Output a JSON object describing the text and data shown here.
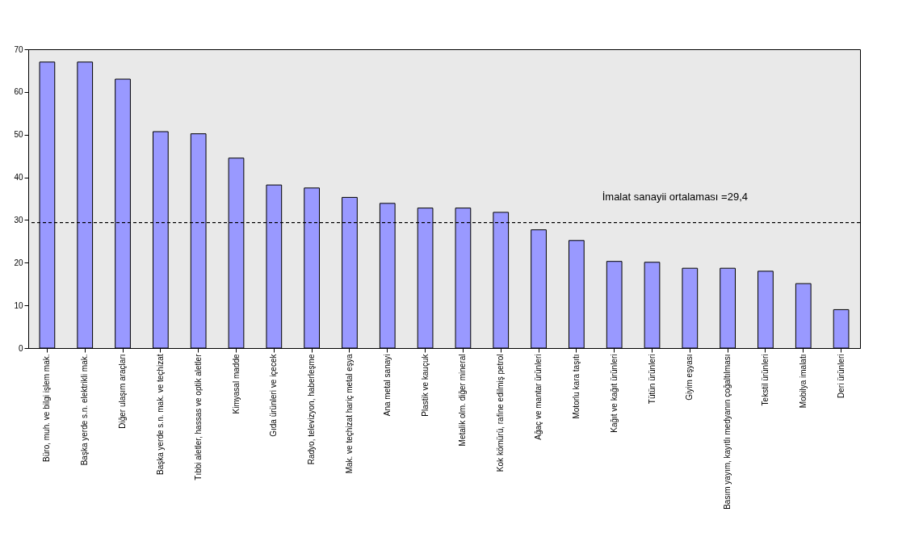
{
  "chart_data": {
    "type": "bar",
    "categories": [
      "Büro, muh. ve bilgi işlem mak.",
      "Başka yerde s.n. elektrikli mak.",
      "Diğer ulaşım araçları",
      "Başka yerde s.n. mak. ve teçhizat",
      "Tıbbi aletler, hassas ve optik aletler",
      "Kimyasal madde",
      "Gıda ürünleri ve içecek",
      "Radyo, televizyon, haberleşme",
      "Mak. ve teçhizat hariç metal eşya",
      "Ana metal sanayi",
      "Plastik ve kauçuk",
      "Metalik olm. diğer mineral",
      "Kok kömürü, rafine edilmiş petrol",
      "Ağaç ve mantar ürünleri",
      "Motorlu kara taşıtı",
      "Kağıt ve kağıt ürünleri",
      "Tütün ürünleri",
      "Giyim eşyası",
      "Basım yayım, kayıtlı medyanın çoğaltılması",
      "Tekstil ürünleri",
      "Mobilya imalatı",
      "Deri ürünleri"
    ],
    "values": [
      67,
      67,
      63,
      50.7,
      50.2,
      44.5,
      38.2,
      37.5,
      35.3,
      33.9,
      32.8,
      32.8,
      31.8,
      27.7,
      25.2,
      20.3,
      20.1,
      18.7,
      18.7,
      18,
      15.1,
      9
    ],
    "color": "#9999ff",
    "ylim": [
      0,
      70
    ],
    "yticks": [
      0,
      10,
      20,
      30,
      40,
      50,
      60,
      70
    ],
    "grid": false,
    "ref_lines": [
      {
        "axis": "y",
        "value": 29.4,
        "label": "İmalat sanayii ortalaması =29,4",
        "line_style": "dashed",
        "color": "#000000"
      }
    ]
  }
}
